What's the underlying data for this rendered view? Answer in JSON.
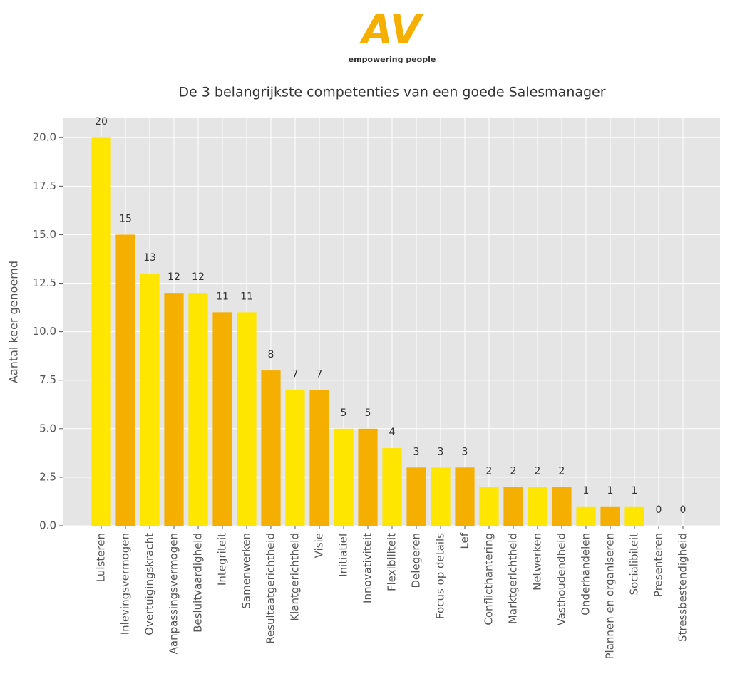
{
  "logo": {
    "text": "AV",
    "tagline": "empowering people"
  },
  "chart_data": {
    "type": "bar",
    "title": "De 3 belangrijkste competenties van een goede Salesmanager",
    "y_label": "Aantal keer genoemd",
    "categories": [
      "Luisteren",
      "Inlevingsvermogen",
      "Overtuigingskracht",
      "Aanpassingsvermogen",
      "Besluitvaardigheid",
      "Integriteit",
      "Samenwerken",
      "Resultaatgerichtheid",
      "Klantgerichtheid",
      "Visie",
      "Initiatief",
      "Innovativiteit",
      "Flexibiliteit",
      "Delegeren",
      "Focus op details",
      "Lef",
      "Conflicthantering",
      "Marktgerichtheid",
      "Netwerken",
      "Vasthoudendheid",
      "Onderhandelen",
      "Plannen en organiseren",
      "Socialibiteit",
      "Presenteren",
      "Stressbestendigheid"
    ],
    "values": [
      20,
      15,
      13,
      12,
      12,
      11,
      11,
      8,
      7,
      7,
      5,
      5,
      4,
      3,
      3,
      3,
      2,
      2,
      2,
      2,
      1,
      1,
      1,
      0,
      0
    ],
    "colors": [
      "#FFE600",
      "#F5AF00"
    ],
    "ylim": [
      0,
      21
    ],
    "yticks": [
      {
        "value": 0,
        "label": "0.0"
      },
      2.5,
      {
        "value": 5,
        "label": "5.0"
      },
      7.5,
      {
        "value": 10,
        "label": "10.0"
      },
      12.5,
      {
        "value": 15,
        "label": "15.0"
      },
      17.5,
      {
        "value": 20,
        "label": "20.0"
      }
    ],
    "grid": true
  }
}
